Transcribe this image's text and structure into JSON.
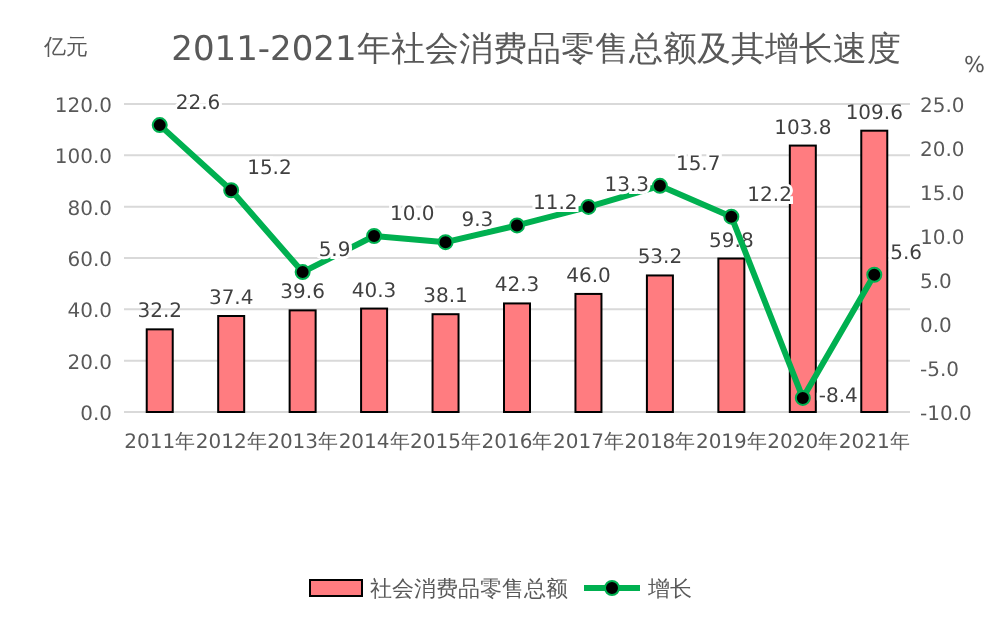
{
  "chart_data": {
    "type": "bar",
    "title": "2011-2021年社会消费品零售总额及其增长速度",
    "ylabel": "亿元",
    "y2label": "%",
    "categories": [
      "2011年",
      "2012年",
      "2013年",
      "2014年",
      "2015年",
      "2016年",
      "2017年",
      "2018年",
      "2019年",
      "2020年",
      "2021年"
    ],
    "series": [
      {
        "name": "社会消费品零售总额",
        "color": "#ff7c80",
        "values": [
          32.2,
          37.4,
          39.6,
          40.3,
          38.1,
          42.3,
          46.0,
          53.2,
          59.8,
          103.8,
          109.6
        ],
        "value_labels": [
          "32.2",
          "37.4",
          "39.6",
          "40.3",
          "38.1",
          "42.3",
          "46.0",
          "53.2",
          "59.8",
          "103.8",
          "109.6"
        ]
      },
      {
        "name": "增长",
        "type": "line",
        "axis": "y2",
        "color": "#00b050",
        "marker": "circle",
        "values": [
          22.6,
          15.2,
          5.9,
          10.0,
          9.3,
          11.2,
          13.3,
          15.7,
          12.2,
          -8.4,
          5.6
        ],
        "value_labels": [
          "22.6",
          "15.2",
          "5.9",
          "10.0",
          "9.3",
          "11.2",
          "13.3",
          "15.7",
          "12.2",
          "-8.4",
          "5.6"
        ]
      }
    ],
    "ylim": [
      0,
      120
    ],
    "yticks": [
      {
        "value": 0,
        "label": "0.0"
      },
      {
        "value": 20,
        "label": "20.0"
      },
      {
        "value": 40,
        "label": "40.0"
      },
      {
        "value": 60,
        "label": "60.0"
      },
      {
        "value": 80,
        "label": "80.0"
      },
      {
        "value": 100,
        "label": "100.0"
      },
      {
        "value": 120,
        "label": "120.0"
      }
    ],
    "y2lim": [
      -10,
      25
    ],
    "y2ticks": [
      {
        "value": -10,
        "label": "-10.0"
      },
      {
        "value": -5,
        "label": "-5.0"
      },
      {
        "value": 0,
        "label": "0.0"
      },
      {
        "value": 5,
        "label": "5.0"
      },
      {
        "value": 10,
        "label": "10.0"
      },
      {
        "value": 15,
        "label": "15.0"
      },
      {
        "value": 20,
        "label": "20.0"
      },
      {
        "value": 25,
        "label": "25.0"
      }
    ],
    "grid": "y",
    "legend": "bottom"
  }
}
